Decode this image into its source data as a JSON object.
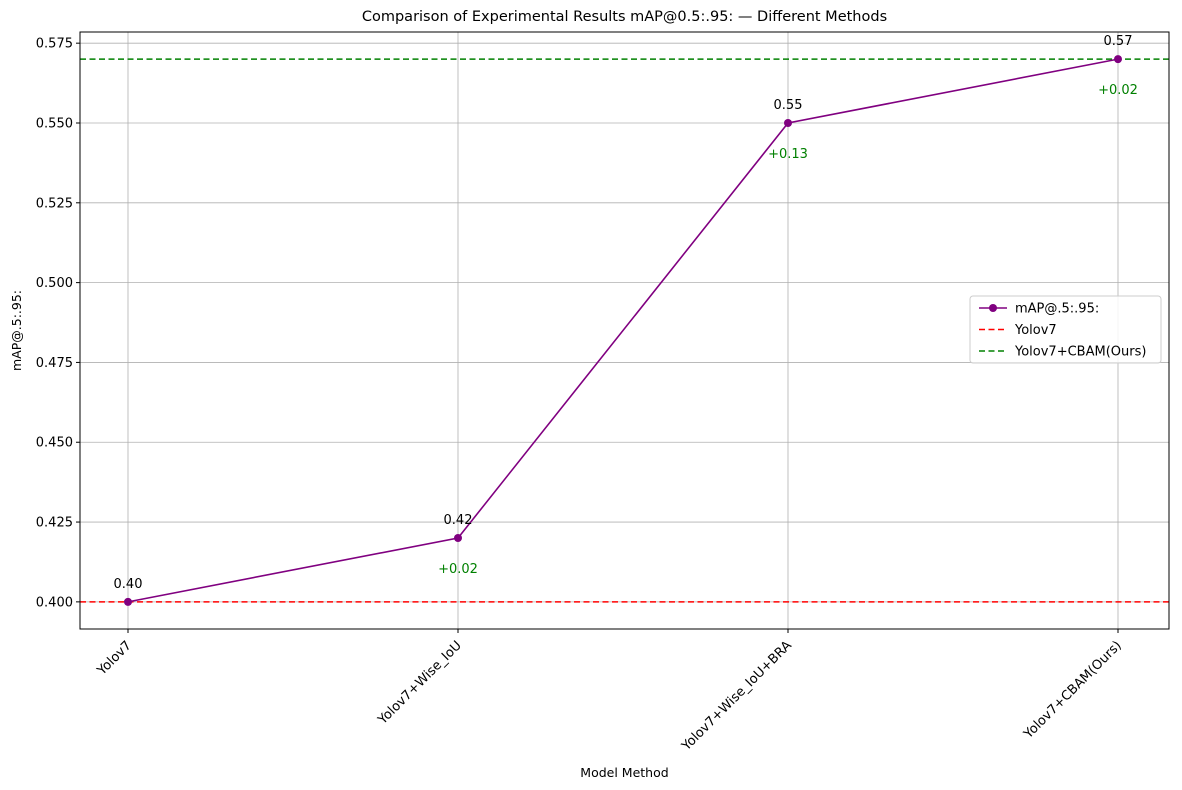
{
  "chart_data": {
    "type": "line",
    "title": "Comparison of Experimental Results mAP@0.5:.95: — Different Methods",
    "xlabel": "Model Method",
    "ylabel": "mAP@.5:.95:",
    "categories": [
      "Yolov7",
      "Yolov7+Wise_IoU",
      "Yolov7+Wise_IoU+BRA",
      "Yolov7+CBAM(Ours)"
    ],
    "series": [
      {
        "name": "mAP@.5:.95:",
        "values": [
          0.4,
          0.42,
          0.55,
          0.57
        ],
        "color": "#800080",
        "marker": "circle"
      }
    ],
    "data_labels": [
      "0.40",
      "0.42",
      "0.55",
      "0.57"
    ],
    "delta_labels": [
      null,
      "+0.02",
      "+0.13",
      "+0.02"
    ],
    "delta_color": "#008000",
    "reference_lines": [
      {
        "name": "Yolov7",
        "y": 0.4,
        "color": "#ff0000",
        "style": "dashed"
      },
      {
        "name": "Yolov7+CBAM(Ours)",
        "y": 0.57,
        "color": "#008000",
        "style": "dashed"
      }
    ],
    "ylim": [
      0.3915,
      0.5785
    ],
    "yticks": [
      0.4,
      0.425,
      0.45,
      0.475,
      0.5,
      0.525,
      0.55,
      0.575
    ],
    "ytick_labels": [
      "0.400",
      "0.425",
      "0.450",
      "0.475",
      "0.500",
      "0.525",
      "0.550",
      "0.575"
    ],
    "grid": true,
    "legend_position": "center-right",
    "xtick_rotation": 45
  }
}
